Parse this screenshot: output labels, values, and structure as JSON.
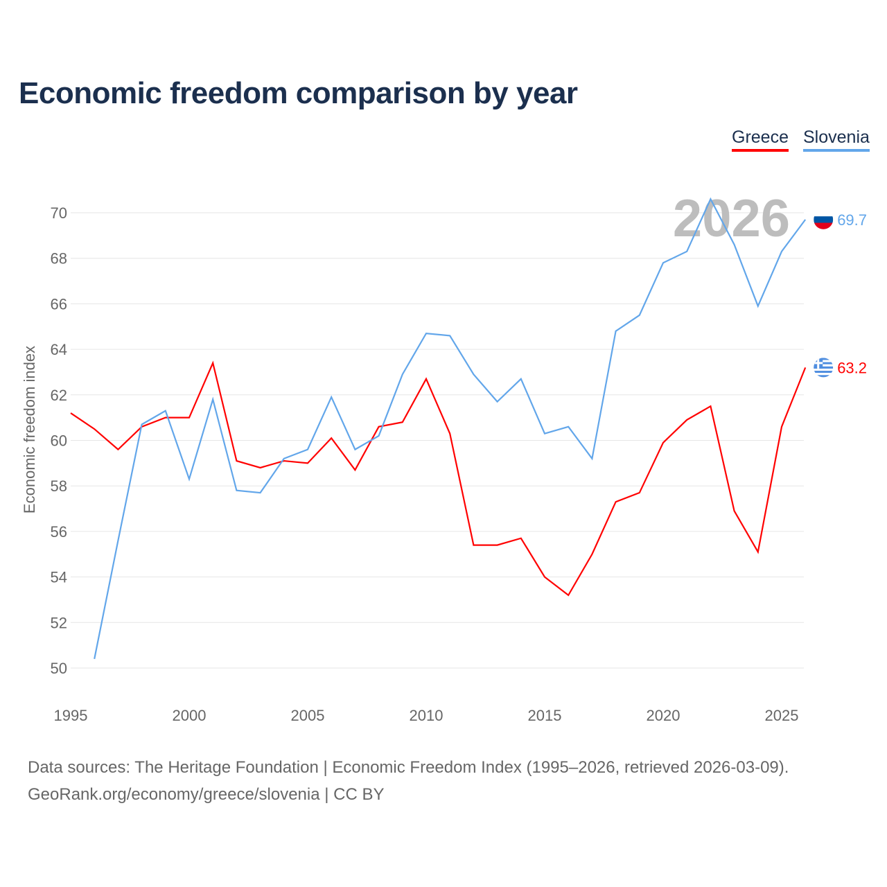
{
  "chart_data": {
    "type": "line",
    "title": "Economic freedom comparison by year",
    "ylabel": "Economic freedom index",
    "xlabel": "",
    "ylim": [
      50,
      70
    ],
    "xlim": [
      1995,
      2026
    ],
    "yticks": [
      50,
      52,
      54,
      56,
      58,
      60,
      62,
      64,
      66,
      68,
      70
    ],
    "xticks": [
      1995,
      2000,
      2005,
      2010,
      2015,
      2020,
      2025
    ],
    "grid": true,
    "legend_position": "top-right",
    "year_label": "2026",
    "series": [
      {
        "name": "Greece",
        "color": "#ff0000",
        "end_label": "63.2",
        "x": [
          1995,
          1996,
          1997,
          1998,
          1999,
          2000,
          2001,
          2002,
          2003,
          2004,
          2005,
          2006,
          2007,
          2008,
          2009,
          2010,
          2011,
          2012,
          2013,
          2014,
          2015,
          2016,
          2017,
          2018,
          2019,
          2020,
          2021,
          2022,
          2023,
          2024,
          2025,
          2026
        ],
        "values": [
          61.2,
          60.5,
          59.6,
          60.6,
          61.0,
          61.0,
          63.4,
          59.1,
          58.8,
          59.1,
          59.0,
          60.1,
          58.7,
          60.6,
          60.8,
          62.7,
          60.3,
          55.4,
          55.4,
          55.7,
          54.0,
          53.2,
          55.0,
          57.3,
          57.7,
          59.9,
          60.9,
          61.5,
          56.9,
          55.1,
          60.6,
          63.2
        ]
      },
      {
        "name": "Slovenia",
        "color": "#62a6ea",
        "end_label": "69.7",
        "x": [
          1996,
          1997,
          1998,
          1999,
          2000,
          2001,
          2002,
          2003,
          2004,
          2005,
          2006,
          2007,
          2008,
          2009,
          2010,
          2011,
          2012,
          2013,
          2014,
          2015,
          2016,
          2017,
          2018,
          2019,
          2020,
          2021,
          2022,
          2023,
          2024,
          2025,
          2026
        ],
        "values": [
          50.4,
          55.6,
          60.7,
          61.3,
          58.3,
          61.8,
          57.8,
          57.7,
          59.2,
          59.6,
          61.9,
          59.6,
          60.2,
          62.9,
          64.7,
          64.6,
          62.9,
          61.7,
          62.7,
          60.3,
          60.6,
          59.2,
          64.8,
          65.5,
          67.8,
          68.3,
          70.6,
          68.6,
          65.9,
          68.3,
          69.7
        ]
      }
    ]
  },
  "source_line1": "Data sources: The Heritage Foundation | Economic Freedom Index (1995–2026, retrieved 2026-03-09).",
  "source_line2": "GeoRank.org/economy/greece/slovenia | CC BY"
}
